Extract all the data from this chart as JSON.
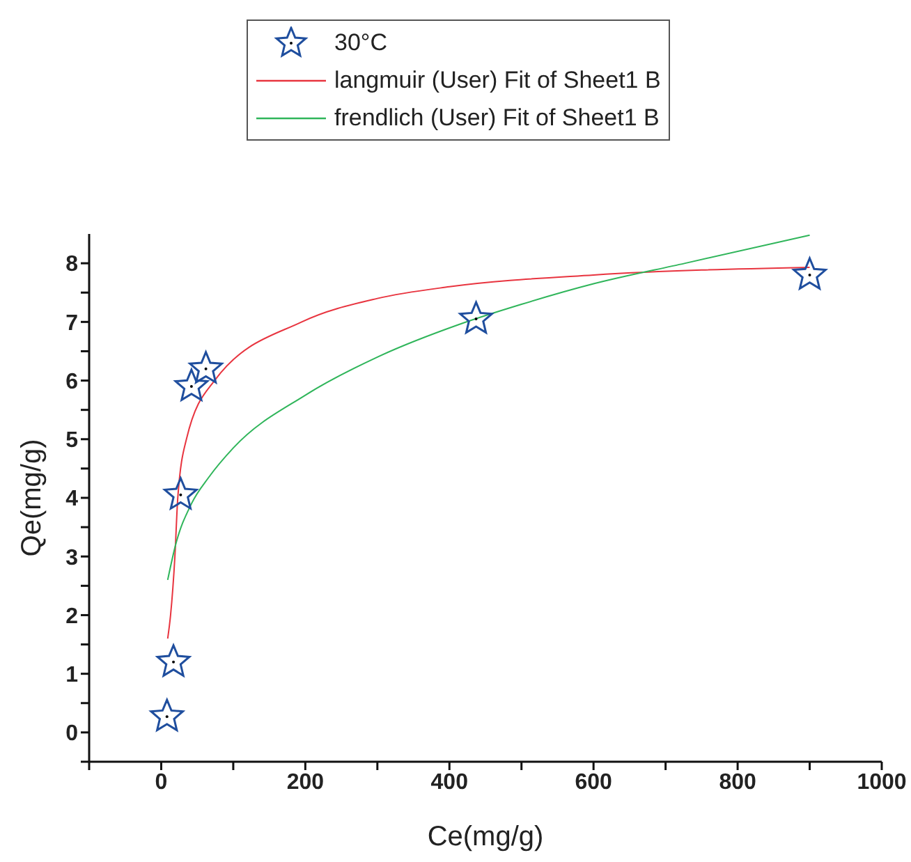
{
  "chart_data": {
    "type": "scatter",
    "xlabel": "Ce(mg/g)",
    "ylabel": "Qe(mg/g)",
    "xlim": [
      -100,
      1000
    ],
    "ylim": [
      -0.5,
      8.5
    ],
    "xticks": [
      {
        "value": -100,
        "label": null
      },
      0,
      {
        "value": 100,
        "label": null
      },
      200,
      {
        "value": 300,
        "label": null
      },
      400,
      {
        "value": 500,
        "label": null
      },
      600,
      {
        "value": 700,
        "label": null
      },
      800,
      {
        "value": 900,
        "label": null
      },
      1000
    ],
    "yticks": [
      {
        "value": -0.5,
        "label": null
      },
      0,
      {
        "value": 0.5,
        "label": null
      },
      1,
      {
        "value": 1.5,
        "label": null
      },
      2,
      {
        "value": 2.5,
        "label": null
      },
      3,
      {
        "value": 3.5,
        "label": null
      },
      4,
      {
        "value": 4.5,
        "label": null
      },
      5,
      {
        "value": 5.5,
        "label": null
      },
      6,
      {
        "value": 6.5,
        "label": null
      },
      7,
      {
        "value": 7.5,
        "label": null
      },
      8
    ],
    "grid": false,
    "legend": "top",
    "series": [
      {
        "name": "30°C",
        "marker": "star",
        "color": "#1f4e9e",
        "x": [
          8,
          17,
          27,
          42,
          62,
          437,
          900
        ],
        "values": [
          0.27,
          1.2,
          4.05,
          5.9,
          6.2,
          7.05,
          7.8
        ]
      },
      {
        "name": "langmuir (User) Fit of Sheet1 B",
        "type": "line",
        "marker": "none",
        "color": "#e8343f",
        "x": [
          9,
          13,
          19,
          23,
          35,
          74,
          195,
          300,
          400,
          600,
          900
        ],
        "values": [
          1.6,
          2,
          3,
          4,
          5,
          6,
          7,
          7.4,
          7.6,
          7.8,
          7.93
        ]
      },
      {
        "name": "frendlich (User) Fit of Sheet1 B",
        "type": "line",
        "marker": "none",
        "color": "#2fb55a",
        "x": [
          9,
          20,
          42,
          66,
          100,
          200,
          300,
          412,
          500,
          600,
          727,
          900
        ],
        "values": [
          2.6,
          3.2,
          3.9,
          4.35,
          4.85,
          5.75,
          6.4,
          6.95,
          7.3,
          7.65,
          8.0,
          8.48
        ]
      }
    ]
  }
}
